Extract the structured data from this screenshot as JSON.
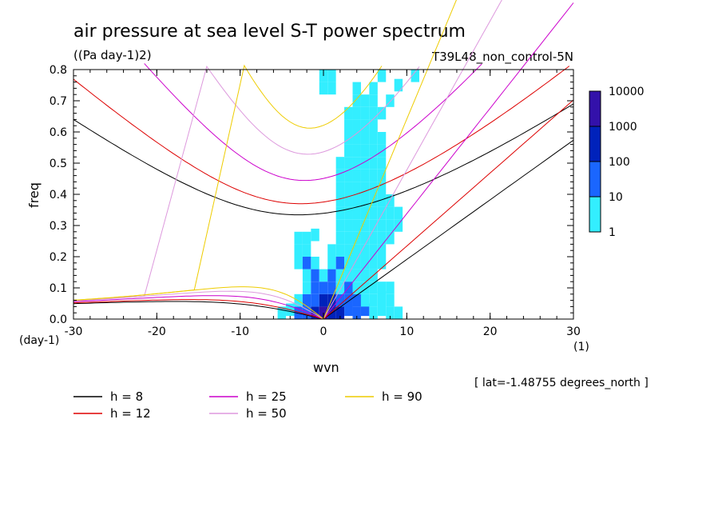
{
  "chart_data": {
    "type": "heatmap",
    "title": "air pressure at sea level S-T power spectrum",
    "units": "((Pa day-1)2)",
    "run_label": "T39L48_non_control-5N",
    "xlabel": "wvn",
    "ylabel": "freq",
    "x_unit": "(1)",
    "y_unit": "(day-1)",
    "note": "[ lat=-1.48755 degrees_north ]",
    "xlim": [
      -30,
      30
    ],
    "ylim": [
      0,
      0.8
    ],
    "x_ticks": [
      -30,
      -20,
      -10,
      0,
      10,
      20,
      30
    ],
    "x_tick_labels": [
      "-30",
      "-20",
      "-10",
      "0",
      "10",
      "20",
      "30"
    ],
    "y_ticks": [
      0.0,
      0.1,
      0.2,
      0.3,
      0.4,
      0.5,
      0.6,
      0.7,
      0.8
    ],
    "y_tick_labels": [
      "0.0",
      "0.1",
      "0.2",
      "0.3",
      "0.4",
      "0.5",
      "0.6",
      "0.7",
      "0.8"
    ],
    "colorbar": {
      "levels": [
        1,
        10,
        100,
        1000,
        10000
      ],
      "labels": [
        "1",
        "10",
        "100",
        "1000",
        "10000"
      ],
      "colors": [
        "#33eeff",
        "#1a66ff",
        "#0022bb",
        "#3311aa"
      ]
    },
    "dispersion_curves": [
      {
        "name": "h =  8",
        "h": 8,
        "color": "#000000"
      },
      {
        "name": "h = 12",
        "h": 12,
        "color": "#dd0000"
      },
      {
        "name": "h = 25",
        "h": 25,
        "color": "#cc00cc"
      },
      {
        "name": "h = 50",
        "h": 50,
        "color": "#dd99dd"
      },
      {
        "name": "h = 90",
        "h": 90,
        "color": "#eecc00"
      }
    ],
    "power_cells": [
      {
        "x": -5,
        "y": 0.02,
        "level": 1
      },
      {
        "x": -4,
        "y": 0.03,
        "level": 1
      },
      {
        "x": -3,
        "y": 0.02,
        "level": 2
      },
      {
        "x": -2,
        "y": 0.02,
        "level": 2
      },
      {
        "x": -1,
        "y": 0.02,
        "level": 3
      },
      {
        "x": 0,
        "y": 0.02,
        "level": 4
      },
      {
        "x": 1,
        "y": 0.02,
        "level": 3
      },
      {
        "x": 2,
        "y": 0.02,
        "level": 3
      },
      {
        "x": 3,
        "y": 0.03,
        "level": 2
      },
      {
        "x": 4,
        "y": 0.02,
        "level": 2
      },
      {
        "x": 5,
        "y": 0.03,
        "level": 2
      },
      {
        "x": 6,
        "y": 0.02,
        "level": 1
      },
      {
        "x": 7,
        "y": 0.03,
        "level": 1
      },
      {
        "x": 8,
        "y": 0.02,
        "level": 1
      },
      {
        "x": 9,
        "y": 0.02,
        "level": 1
      },
      {
        "x": -3,
        "y": 0.06,
        "level": 1
      },
      {
        "x": -2,
        "y": 0.06,
        "level": 2
      },
      {
        "x": -1,
        "y": 0.06,
        "level": 2
      },
      {
        "x": 0,
        "y": 0.06,
        "level": 3
      },
      {
        "x": 1,
        "y": 0.06,
        "level": 3
      },
      {
        "x": 2,
        "y": 0.06,
        "level": 2
      },
      {
        "x": 3,
        "y": 0.06,
        "level": 2
      },
      {
        "x": 4,
        "y": 0.06,
        "level": 2
      },
      {
        "x": 5,
        "y": 0.06,
        "level": 1
      },
      {
        "x": 6,
        "y": 0.06,
        "level": 1
      },
      {
        "x": 7,
        "y": 0.07,
        "level": 1
      },
      {
        "x": 8,
        "y": 0.06,
        "level": 1
      },
      {
        "x": -2,
        "y": 0.1,
        "level": 1
      },
      {
        "x": -1,
        "y": 0.1,
        "level": 2
      },
      {
        "x": 0,
        "y": 0.1,
        "level": 2
      },
      {
        "x": 1,
        "y": 0.1,
        "level": 2
      },
      {
        "x": 2,
        "y": 0.1,
        "level": 1
      },
      {
        "x": 3,
        "y": 0.1,
        "level": 2
      },
      {
        "x": 4,
        "y": 0.1,
        "level": 1
      },
      {
        "x": 5,
        "y": 0.1,
        "level": 1
      },
      {
        "x": 6,
        "y": 0.1,
        "level": 1
      },
      {
        "x": 7,
        "y": 0.1,
        "level": 1
      },
      {
        "x": 8,
        "y": 0.1,
        "level": 1
      },
      {
        "x": -2,
        "y": 0.14,
        "level": 1
      },
      {
        "x": -1,
        "y": 0.14,
        "level": 2
      },
      {
        "x": 0,
        "y": 0.14,
        "level": 1
      },
      {
        "x": 1,
        "y": 0.14,
        "level": 2
      },
      {
        "x": 2,
        "y": 0.14,
        "level": 1
      },
      {
        "x": 3,
        "y": 0.14,
        "level": 1
      },
      {
        "x": 4,
        "y": 0.14,
        "level": 1
      },
      {
        "x": 5,
        "y": 0.14,
        "level": 1
      },
      {
        "x": 6,
        "y": 0.14,
        "level": 1
      },
      {
        "x": -3,
        "y": 0.18,
        "level": 1
      },
      {
        "x": -2,
        "y": 0.18,
        "level": 2
      },
      {
        "x": -1,
        "y": 0.18,
        "level": 1
      },
      {
        "x": 1,
        "y": 0.18,
        "level": 1
      },
      {
        "x": 2,
        "y": 0.18,
        "level": 2
      },
      {
        "x": 3,
        "y": 0.18,
        "level": 1
      },
      {
        "x": 4,
        "y": 0.18,
        "level": 1
      },
      {
        "x": 5,
        "y": 0.18,
        "level": 1
      },
      {
        "x": 6,
        "y": 0.18,
        "level": 1
      },
      {
        "x": 7,
        "y": 0.18,
        "level": 1
      },
      {
        "x": -3,
        "y": 0.22,
        "level": 1
      },
      {
        "x": -2,
        "y": 0.22,
        "level": 1
      },
      {
        "x": 1,
        "y": 0.22,
        "level": 1
      },
      {
        "x": 2,
        "y": 0.22,
        "level": 1
      },
      {
        "x": 3,
        "y": 0.22,
        "level": 1
      },
      {
        "x": 4,
        "y": 0.22,
        "level": 1
      },
      {
        "x": 5,
        "y": 0.22,
        "level": 1
      },
      {
        "x": 6,
        "y": 0.22,
        "level": 1
      },
      {
        "x": 7,
        "y": 0.22,
        "level": 1
      },
      {
        "x": -3,
        "y": 0.26,
        "level": 1
      },
      {
        "x": -2,
        "y": 0.26,
        "level": 1
      },
      {
        "x": -1,
        "y": 0.27,
        "level": 1
      },
      {
        "x": 2,
        "y": 0.26,
        "level": 1
      },
      {
        "x": 3,
        "y": 0.26,
        "level": 1
      },
      {
        "x": 4,
        "y": 0.26,
        "level": 1
      },
      {
        "x": 5,
        "y": 0.26,
        "level": 1
      },
      {
        "x": 6,
        "y": 0.26,
        "level": 1
      },
      {
        "x": 7,
        "y": 0.26,
        "level": 1
      },
      {
        "x": 8,
        "y": 0.26,
        "level": 1
      },
      {
        "x": 2,
        "y": 0.3,
        "level": 1
      },
      {
        "x": 3,
        "y": 0.3,
        "level": 1
      },
      {
        "x": 4,
        "y": 0.3,
        "level": 1
      },
      {
        "x": 5,
        "y": 0.3,
        "level": 1
      },
      {
        "x": 6,
        "y": 0.3,
        "level": 1
      },
      {
        "x": 7,
        "y": 0.3,
        "level": 1
      },
      {
        "x": 8,
        "y": 0.3,
        "level": 1
      },
      {
        "x": 9,
        "y": 0.3,
        "level": 1
      },
      {
        "x": 2,
        "y": 0.34,
        "level": 1
      },
      {
        "x": 3,
        "y": 0.34,
        "level": 1
      },
      {
        "x": 4,
        "y": 0.34,
        "level": 1
      },
      {
        "x": 5,
        "y": 0.34,
        "level": 1
      },
      {
        "x": 6,
        "y": 0.34,
        "level": 1
      },
      {
        "x": 7,
        "y": 0.34,
        "level": 1
      },
      {
        "x": 8,
        "y": 0.34,
        "level": 1
      },
      {
        "x": 9,
        "y": 0.34,
        "level": 1
      },
      {
        "x": 2,
        "y": 0.38,
        "level": 1
      },
      {
        "x": 3,
        "y": 0.38,
        "level": 1
      },
      {
        "x": 4,
        "y": 0.38,
        "level": 1
      },
      {
        "x": 5,
        "y": 0.38,
        "level": 1
      },
      {
        "x": 6,
        "y": 0.38,
        "level": 1
      },
      {
        "x": 7,
        "y": 0.38,
        "level": 1
      },
      {
        "x": 8,
        "y": 0.38,
        "level": 1
      },
      {
        "x": 2,
        "y": 0.42,
        "level": 1
      },
      {
        "x": 3,
        "y": 0.42,
        "level": 1
      },
      {
        "x": 4,
        "y": 0.42,
        "level": 1
      },
      {
        "x": 5,
        "y": 0.42,
        "level": 1
      },
      {
        "x": 6,
        "y": 0.42,
        "level": 1
      },
      {
        "x": 7,
        "y": 0.42,
        "level": 1
      },
      {
        "x": 2,
        "y": 0.46,
        "level": 1
      },
      {
        "x": 3,
        "y": 0.46,
        "level": 1
      },
      {
        "x": 4,
        "y": 0.46,
        "level": 1
      },
      {
        "x": 5,
        "y": 0.46,
        "level": 1
      },
      {
        "x": 6,
        "y": 0.46,
        "level": 1
      },
      {
        "x": 7,
        "y": 0.46,
        "level": 1
      },
      {
        "x": 2,
        "y": 0.5,
        "level": 1
      },
      {
        "x": 3,
        "y": 0.5,
        "level": 1
      },
      {
        "x": 4,
        "y": 0.5,
        "level": 1
      },
      {
        "x": 5,
        "y": 0.5,
        "level": 1
      },
      {
        "x": 6,
        "y": 0.5,
        "level": 1
      },
      {
        "x": 7,
        "y": 0.5,
        "level": 1
      },
      {
        "x": 3,
        "y": 0.54,
        "level": 1
      },
      {
        "x": 4,
        "y": 0.54,
        "level": 1
      },
      {
        "x": 5,
        "y": 0.54,
        "level": 1
      },
      {
        "x": 6,
        "y": 0.54,
        "level": 1
      },
      {
        "x": 7,
        "y": 0.54,
        "level": 1
      },
      {
        "x": 3,
        "y": 0.58,
        "level": 1
      },
      {
        "x": 4,
        "y": 0.58,
        "level": 1
      },
      {
        "x": 5,
        "y": 0.58,
        "level": 1
      },
      {
        "x": 6,
        "y": 0.58,
        "level": 1
      },
      {
        "x": 7,
        "y": 0.58,
        "level": 1
      },
      {
        "x": 3,
        "y": 0.62,
        "level": 1
      },
      {
        "x": 4,
        "y": 0.62,
        "level": 1
      },
      {
        "x": 5,
        "y": 0.62,
        "level": 1
      },
      {
        "x": 6,
        "y": 0.62,
        "level": 1
      },
      {
        "x": 3,
        "y": 0.66,
        "level": 1
      },
      {
        "x": 4,
        "y": 0.66,
        "level": 1
      },
      {
        "x": 5,
        "y": 0.66,
        "level": 1
      },
      {
        "x": 6,
        "y": 0.66,
        "level": 1
      },
      {
        "x": 7,
        "y": 0.66,
        "level": 1
      },
      {
        "x": 4,
        "y": 0.7,
        "level": 1
      },
      {
        "x": 5,
        "y": 0.7,
        "level": 1
      },
      {
        "x": 6,
        "y": 0.7,
        "level": 1
      },
      {
        "x": 8,
        "y": 0.7,
        "level": 1
      },
      {
        "x": 0,
        "y": 0.74,
        "level": 1
      },
      {
        "x": 1,
        "y": 0.74,
        "level": 1
      },
      {
        "x": 4,
        "y": 0.74,
        "level": 1
      },
      {
        "x": 6,
        "y": 0.74,
        "level": 1
      },
      {
        "x": 9,
        "y": 0.75,
        "level": 1
      },
      {
        "x": 0,
        "y": 0.78,
        "level": 1
      },
      {
        "x": 1,
        "y": 0.78,
        "level": 1
      },
      {
        "x": 7,
        "y": 0.78,
        "level": 1
      },
      {
        "x": 11,
        "y": 0.78,
        "level": 1
      }
    ]
  }
}
